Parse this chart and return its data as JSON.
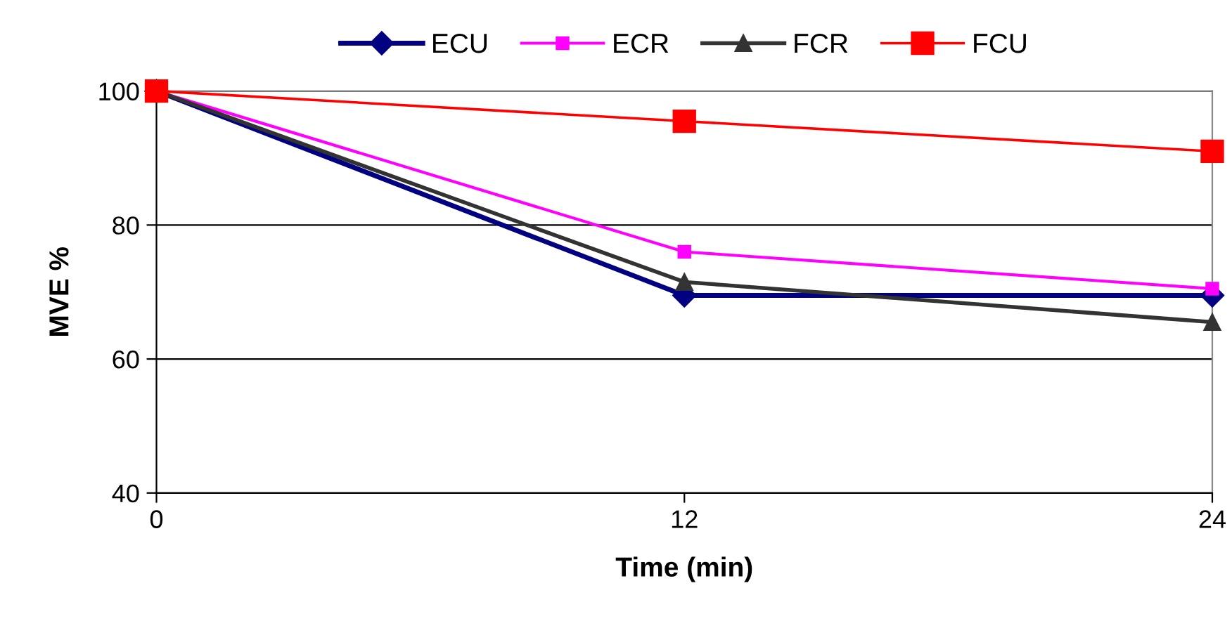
{
  "chart_data": {
    "type": "line",
    "xlabel": "Time (min)",
    "ylabel": "MVE %",
    "x": [
      0,
      12,
      24
    ],
    "xlim": [
      0,
      24
    ],
    "xticks": [
      0,
      12,
      24
    ],
    "ylim": [
      40,
      100
    ],
    "yticks": [
      40,
      60,
      80,
      100
    ],
    "grid": "y",
    "legend": "top",
    "series": [
      {
        "name": "ECU",
        "color": "#000080",
        "marker": "diamond",
        "values": [
          100,
          69.5,
          69.5
        ]
      },
      {
        "name": "ECR",
        "color": "#ff00ff",
        "marker": "square",
        "values": [
          100,
          76,
          70.5
        ]
      },
      {
        "name": "FCR",
        "color": "#333333",
        "marker": "triangle",
        "values": [
          100,
          71.5,
          65.5
        ]
      },
      {
        "name": "FCU",
        "color": "#ff0000",
        "marker": "square",
        "values": [
          100,
          95.5,
          91
        ]
      }
    ]
  }
}
